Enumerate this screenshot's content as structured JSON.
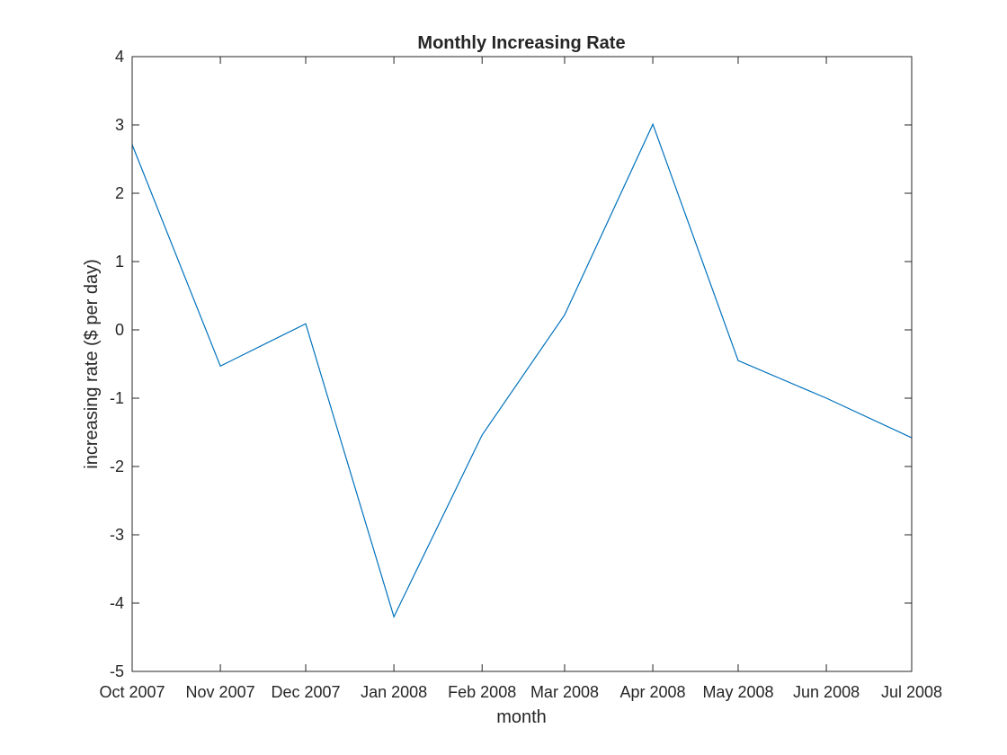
{
  "chart_data": {
    "type": "line",
    "title": "Monthly Increasing Rate",
    "xlabel": "month",
    "ylabel": "increasing rate ($ per day)",
    "categories": [
      "Oct 2007",
      "Nov 2007",
      "Dec 2007",
      "Jan 2008",
      "Feb 2008",
      "Mar 2008",
      "Apr 2008",
      "May 2008",
      "Jun 2008",
      "Jul 2008"
    ],
    "x": [
      "2007-10-01",
      "2007-11-01",
      "2007-12-01",
      "2008-01-01",
      "2008-02-01",
      "2008-03-01",
      "2008-04-01",
      "2008-05-01",
      "2008-06-01",
      "2008-07-01"
    ],
    "series": [
      {
        "values": [
          2.71,
          -0.53,
          0.09,
          -4.2,
          -1.54,
          0.22,
          3.01,
          -0.45,
          -1.0,
          -1.58
        ]
      }
    ],
    "ylim": [
      -5,
      4
    ],
    "yticks": [
      "-5",
      "-4",
      "-3",
      "-2",
      "-1",
      "0",
      "1",
      "2",
      "3",
      "4"
    ],
    "grid": false,
    "box": true,
    "colors": {
      "line": "#0072BD",
      "axes": "#262626",
      "background": "#ffffff"
    }
  }
}
